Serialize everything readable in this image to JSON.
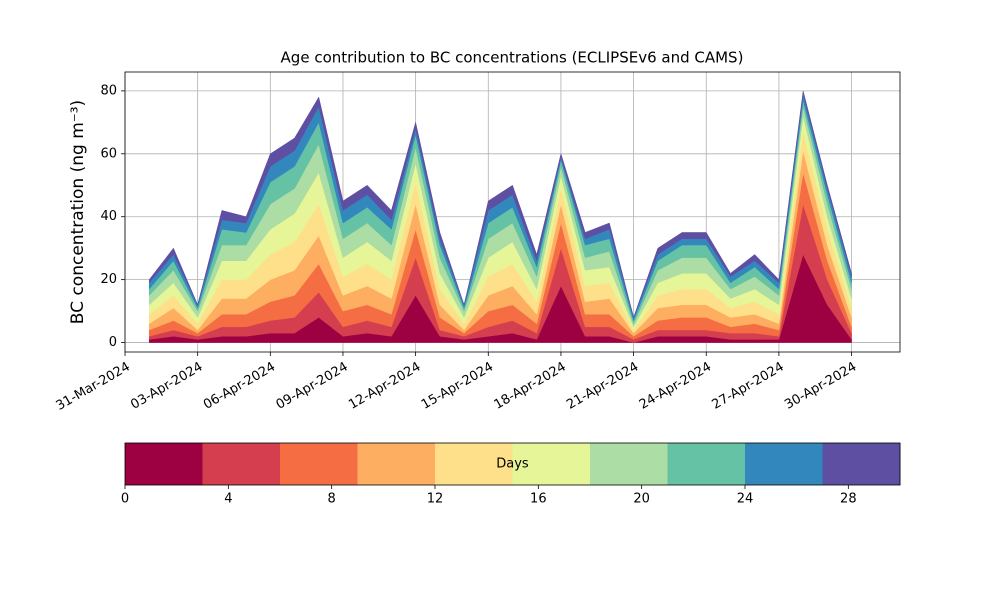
{
  "chart_data": {
    "type": "stackedarea",
    "title": "Age contribution to BC concentrations (ECLIPSEv6 and CAMS)",
    "y_label": "BC concentration (ng m⁻³)",
    "x": [
      "2024-04-01",
      "2024-04-02",
      "2024-04-03",
      "2024-04-04",
      "2024-04-05",
      "2024-04-06",
      "2024-04-07",
      "2024-04-08",
      "2024-04-09",
      "2024-04-10",
      "2024-04-11",
      "2024-04-12",
      "2024-04-13",
      "2024-04-14",
      "2024-04-15",
      "2024-04-16",
      "2024-04-17",
      "2024-04-18",
      "2024-04-19",
      "2024-04-20",
      "2024-04-21",
      "2024-04-22",
      "2024-04-23",
      "2024-04-24",
      "2024-04-25",
      "2024-04-26",
      "2024-04-27",
      "2024-04-28",
      "2024-04-29",
      "2024-04-30"
    ],
    "series": [
      {
        "color": "#9e0142",
        "values": [
          1,
          2,
          1,
          2,
          2,
          3,
          3,
          8,
          2,
          3,
          2,
          15,
          2,
          1,
          2,
          3,
          1,
          18,
          2,
          2,
          0,
          2,
          2,
          2,
          1,
          1,
          1,
          28,
          12,
          1
        ]
      },
      {
        "color": "#d53e4f",
        "values": [
          1,
          2,
          1,
          3,
          3,
          4,
          5,
          8,
          3,
          4,
          3,
          12,
          2,
          1,
          3,
          4,
          2,
          12,
          3,
          3,
          1,
          2,
          2,
          2,
          2,
          2,
          1,
          16,
          8,
          2
        ]
      },
      {
        "color": "#f46d43",
        "values": [
          2,
          3,
          1,
          4,
          4,
          6,
          7,
          9,
          5,
          5,
          4,
          9,
          4,
          1,
          5,
          5,
          3,
          8,
          4,
          4,
          1,
          3,
          4,
          4,
          2,
          3,
          2,
          10,
          6,
          2
        ]
      },
      {
        "color": "#fdae61",
        "values": [
          2,
          4,
          1,
          5,
          5,
          7,
          8,
          9,
          5,
          6,
          5,
          8,
          4,
          1,
          5,
          6,
          3,
          6,
          4,
          5,
          1,
          4,
          4,
          4,
          3,
          3,
          2,
          7,
          5,
          3
        ]
      },
      {
        "color": "#fee08b",
        "values": [
          3,
          4,
          2,
          6,
          6,
          8,
          9,
          10,
          6,
          7,
          6,
          7,
          5,
          2,
          6,
          7,
          4,
          5,
          5,
          5,
          1,
          4,
          5,
          5,
          3,
          4,
          3,
          6,
          5,
          3
        ]
      },
      {
        "color": "#e6f598",
        "values": [
          3,
          4,
          2,
          6,
          6,
          8,
          9,
          10,
          6,
          7,
          6,
          6,
          5,
          2,
          6,
          7,
          4,
          4,
          5,
          5,
          1,
          4,
          5,
          5,
          3,
          4,
          3,
          5,
          4,
          3
        ]
      },
      {
        "color": "#abdda4",
        "values": [
          3,
          4,
          2,
          5,
          5,
          8,
          8,
          9,
          6,
          6,
          5,
          5,
          5,
          2,
          6,
          6,
          4,
          3,
          4,
          5,
          1,
          4,
          5,
          5,
          3,
          4,
          3,
          3,
          4,
          3
        ]
      },
      {
        "color": "#66c2a5",
        "values": [
          2,
          3,
          1,
          5,
          4,
          7,
          7,
          7,
          5,
          5,
          5,
          4,
          4,
          1,
          5,
          5,
          3,
          2,
          4,
          4,
          1,
          3,
          4,
          4,
          2,
          3,
          2,
          2,
          3,
          2
        ]
      },
      {
        "color": "#3288bd",
        "values": [
          2,
          2,
          1,
          3,
          3,
          5,
          5,
          5,
          4,
          4,
          3,
          2,
          2,
          1,
          4,
          4,
          2,
          1,
          2,
          3,
          1,
          2,
          2,
          2,
          2,
          2,
          2,
          2,
          2,
          2
        ]
      },
      {
        "color": "#5e4fa2",
        "values": [
          1,
          2,
          0,
          3,
          2,
          4,
          4,
          3,
          3,
          3,
          3,
          2,
          2,
          0,
          3,
          3,
          2,
          1,
          2,
          2,
          0,
          2,
          2,
          2,
          1,
          2,
          1,
          1,
          1,
          1
        ]
      }
    ],
    "xlim": [
      "2024-03-31",
      "2024-05-02"
    ],
    "xticks": [
      {
        "value": "2024-03-31",
        "label": "31-Mar-2024"
      },
      {
        "value": "2024-04-03",
        "label": "03-Apr-2024"
      },
      {
        "value": "2024-04-06",
        "label": "06-Apr-2024"
      },
      {
        "value": "2024-04-09",
        "label": "09-Apr-2024"
      },
      {
        "value": "2024-04-12",
        "label": "12-Apr-2024"
      },
      {
        "value": "2024-04-15",
        "label": "15-Apr-2024"
      },
      {
        "value": "2024-04-18",
        "label": "18-Apr-2024"
      },
      {
        "value": "2024-04-21",
        "label": "21-Apr-2024"
      },
      {
        "value": "2024-04-24",
        "label": "24-Apr-2024"
      },
      {
        "value": "2024-04-27",
        "label": "27-Apr-2024"
      },
      {
        "value": "2024-04-30",
        "label": "30-Apr-2024"
      }
    ],
    "ylim": [
      -3,
      86
    ],
    "yticks": [
      0,
      20,
      40,
      60,
      80
    ],
    "grid": true,
    "colorbar": {
      "label": "Days",
      "lim": [
        0,
        30
      ],
      "ticks": [
        0,
        4,
        8,
        12,
        16,
        20,
        24,
        28
      ]
    }
  }
}
